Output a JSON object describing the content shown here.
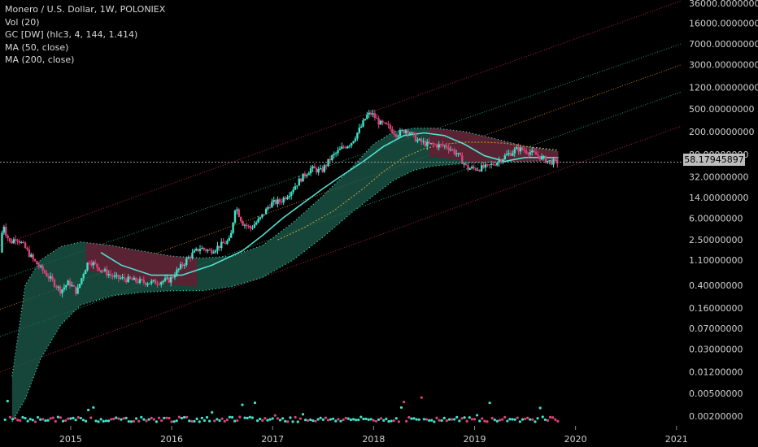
{
  "legend": {
    "symbol": "Monero / U.S. Dollar, 1W, POLONIEX",
    "vol": "Vol (20)",
    "gc": "GC [DW] (hlc3, 4, 144, 1.414)",
    "ma50": "MA (50, close)",
    "ma200": "MA (200, close)"
  },
  "current_price": "58.17945897",
  "colors": {
    "background": "#000000",
    "up": "#3fe3c8",
    "down": "#e0407a",
    "channel_upper_red": "#b3203e",
    "channel_green": "#1f9e6a",
    "channel_orange": "#c8741c",
    "cloud_green": "#1c5e4c",
    "cloud_red": "#6a1a32",
    "ma50": "#52e0d0",
    "ma200": "#c8a03a"
  },
  "chart_data": {
    "type": "candlestick",
    "y_scale": "log",
    "y_tick_labels": [
      "36000.00000000",
      "16000.00000000",
      "7000.00000000",
      "3000.00000000",
      "1200.00000000",
      "500.00000000",
      "200.00000000",
      "80.00000000",
      "32.00000000",
      "14.00000000",
      "6.00000000",
      "2.50000000",
      "1.10000000",
      "0.40000000",
      "0.16000000",
      "0.07000000",
      "0.03000000",
      "0.01200000",
      "0.00500000",
      "0.00200000"
    ],
    "y_tick_values": [
      36000,
      16000,
      7000,
      3000,
      1200,
      500,
      200,
      80,
      32,
      14,
      6,
      2.5,
      1.1,
      0.4,
      0.16,
      0.07,
      0.03,
      0.012,
      0.005,
      0.002
    ],
    "x_tick_labels": [
      "2015",
      "2016",
      "2017",
      "2018",
      "2019",
      "2020",
      "2021"
    ],
    "x_tick_values": [
      2015,
      2016,
      2017,
      2018,
      2019,
      2020,
      2021
    ],
    "x_range": [
      2014.3,
      2021.05
    ],
    "y_range": [
      0.00135,
      41000
    ],
    "price_path": [
      [
        2014.32,
        1.5
      ],
      [
        2014.35,
        5.2
      ],
      [
        2014.38,
        3.2
      ],
      [
        2014.42,
        2.2
      ],
      [
        2014.48,
        2.8
      ],
      [
        2014.55,
        2.0
      ],
      [
        2014.65,
        1.1
      ],
      [
        2014.75,
        0.7
      ],
      [
        2014.85,
        0.45
      ],
      [
        2014.92,
        0.32
      ],
      [
        2015.0,
        0.45
      ],
      [
        2015.08,
        0.3
      ],
      [
        2015.15,
        0.7
      ],
      [
        2015.2,
        1.1
      ],
      [
        2015.3,
        0.8
      ],
      [
        2015.45,
        0.55
      ],
      [
        2015.6,
        0.5
      ],
      [
        2015.75,
        0.45
      ],
      [
        2015.85,
        0.45
      ],
      [
        2016.0,
        0.5
      ],
      [
        2016.1,
        0.8
      ],
      [
        2016.2,
        1.3
      ],
      [
        2016.3,
        1.8
      ],
      [
        2016.4,
        1.6
      ],
      [
        2016.5,
        2.0
      ],
      [
        2016.6,
        2.5
      ],
      [
        2016.65,
        10.0
      ],
      [
        2016.72,
        5.0
      ],
      [
        2016.8,
        4.0
      ],
      [
        2016.9,
        6.0
      ],
      [
        2017.0,
        11.0
      ],
      [
        2017.1,
        12.0
      ],
      [
        2017.2,
        18.0
      ],
      [
        2017.3,
        30.0
      ],
      [
        2017.4,
        45.0
      ],
      [
        2017.5,
        40.0
      ],
      [
        2017.6,
        70.0
      ],
      [
        2017.7,
        100.0
      ],
      [
        2017.8,
        130.0
      ],
      [
        2017.9,
        250.0
      ],
      [
        2017.95,
        380.0
      ],
      [
        2018.0,
        420.0
      ],
      [
        2018.08,
        280.0
      ],
      [
        2018.15,
        250.0
      ],
      [
        2018.25,
        180.0
      ],
      [
        2018.35,
        220.0
      ],
      [
        2018.45,
        140.0
      ],
      [
        2018.55,
        120.0
      ],
      [
        2018.65,
        115.0
      ],
      [
        2018.75,
        110.0
      ],
      [
        2018.85,
        80.0
      ],
      [
        2018.95,
        45.0
      ],
      [
        2019.05,
        45.0
      ],
      [
        2019.15,
        48.0
      ],
      [
        2019.25,
        60.0
      ],
      [
        2019.35,
        80.0
      ],
      [
        2019.45,
        100.0
      ],
      [
        2019.55,
        90.0
      ],
      [
        2019.65,
        75.0
      ],
      [
        2019.75,
        60.0
      ],
      [
        2019.83,
        58.18
      ]
    ],
    "ma50_path": [
      [
        2015.3,
        1.5
      ],
      [
        2015.5,
        0.9
      ],
      [
        2015.8,
        0.6
      ],
      [
        2016.1,
        0.6
      ],
      [
        2016.4,
        0.9
      ],
      [
        2016.7,
        1.6
      ],
      [
        2016.9,
        3.0
      ],
      [
        2017.1,
        6.0
      ],
      [
        2017.3,
        11.0
      ],
      [
        2017.5,
        20.0
      ],
      [
        2017.7,
        35.0
      ],
      [
        2017.9,
        60.0
      ],
      [
        2018.1,
        110.0
      ],
      [
        2018.3,
        170.0
      ],
      [
        2018.5,
        190.0
      ],
      [
        2018.7,
        170.0
      ],
      [
        2018.9,
        120.0
      ],
      [
        2019.1,
        75.0
      ],
      [
        2019.3,
        60.0
      ],
      [
        2019.5,
        70.0
      ],
      [
        2019.83,
        70.0
      ]
    ],
    "ma200_path": [
      [
        2017.05,
        2.5
      ],
      [
        2017.3,
        4.0
      ],
      [
        2017.6,
        8.0
      ],
      [
        2017.9,
        20.0
      ],
      [
        2018.1,
        40.0
      ],
      [
        2018.3,
        70.0
      ],
      [
        2018.5,
        100.0
      ],
      [
        2018.7,
        120.0
      ],
      [
        2018.9,
        130.0
      ],
      [
        2019.1,
        130.0
      ],
      [
        2019.3,
        125.0
      ],
      [
        2019.5,
        110.0
      ],
      [
        2019.83,
        95.0
      ]
    ],
    "cloud_upper": [
      [
        2014.42,
        0.01
      ],
      [
        2014.55,
        0.4
      ],
      [
        2014.7,
        1.1
      ],
      [
        2014.9,
        1.9
      ],
      [
        2015.1,
        2.3
      ],
      [
        2015.4,
        2.0
      ],
      [
        2015.7,
        1.6
      ],
      [
        2016.0,
        1.3
      ],
      [
        2016.3,
        1.2
      ],
      [
        2016.6,
        1.3
      ],
      [
        2016.9,
        2.0
      ],
      [
        2017.2,
        5.0
      ],
      [
        2017.5,
        15.0
      ],
      [
        2017.8,
        50.0
      ],
      [
        2018.0,
        120.0
      ],
      [
        2018.2,
        200.0
      ],
      [
        2018.4,
        230.0
      ],
      [
        2018.6,
        230.0
      ],
      [
        2018.9,
        200.0
      ],
      [
        2019.2,
        150.0
      ],
      [
        2019.5,
        110.0
      ],
      [
        2019.83,
        90.0
      ]
    ],
    "cloud_lower": [
      [
        2014.42,
        0.0016
      ],
      [
        2014.55,
        0.004
      ],
      [
        2014.7,
        0.02
      ],
      [
        2014.9,
        0.08
      ],
      [
        2015.1,
        0.18
      ],
      [
        2015.4,
        0.26
      ],
      [
        2015.7,
        0.3
      ],
      [
        2016.0,
        0.32
      ],
      [
        2016.3,
        0.32
      ],
      [
        2016.6,
        0.38
      ],
      [
        2016.9,
        0.55
      ],
      [
        2017.2,
        1.1
      ],
      [
        2017.5,
        2.8
      ],
      [
        2017.8,
        8.0
      ],
      [
        2018.0,
        15.0
      ],
      [
        2018.2,
        28.0
      ],
      [
        2018.4,
        42.0
      ],
      [
        2018.6,
        50.0
      ],
      [
        2018.9,
        55.0
      ],
      [
        2019.2,
        58.0
      ],
      [
        2019.5,
        60.0
      ],
      [
        2019.83,
        62.0
      ]
    ],
    "channel_lines": [
      {
        "color": "#b3203e",
        "points": [
          [
            2014.3,
            2.0
          ],
          [
            2021.05,
            40000
          ]
        ]
      },
      {
        "color": "#1f9e6a",
        "points": [
          [
            2014.3,
            0.5
          ],
          [
            2021.05,
            7000
          ]
        ]
      },
      {
        "color": "#c8741c",
        "points": [
          [
            2014.3,
            0.15
          ],
          [
            2021.05,
            3000
          ]
        ]
      },
      {
        "color": "#1f9e6a",
        "points": [
          [
            2014.3,
            0.05
          ],
          [
            2021.05,
            1000
          ]
        ]
      },
      {
        "color": "#b3203e",
        "points": [
          [
            2014.3,
            0.012
          ],
          [
            2021.05,
            250
          ]
        ]
      }
    ]
  }
}
